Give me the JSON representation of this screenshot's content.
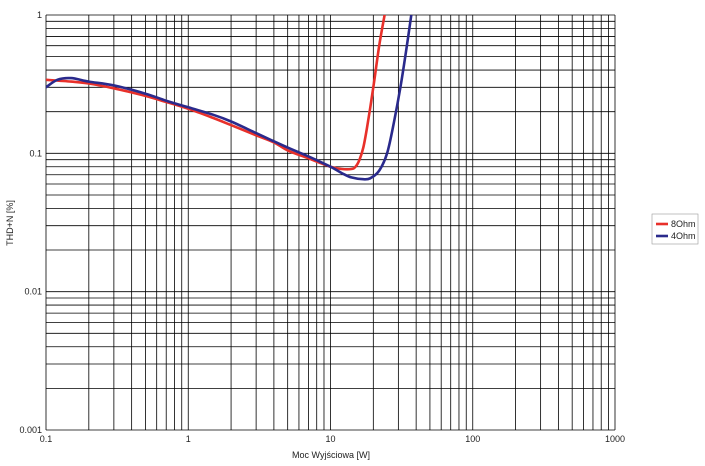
{
  "chart_data": {
    "type": "line",
    "title": "",
    "xlabel": "Moc Wyjściowa [W]",
    "ylabel": "THD+N [%]",
    "xscale": "log",
    "yscale": "log",
    "xlim": [
      0.1,
      1000
    ],
    "ylim": [
      0.001,
      1
    ],
    "grid": true,
    "legend_position": "right",
    "x_tick_labels": [
      "0.1",
      "1",
      "10",
      "100",
      "1000"
    ],
    "y_tick_labels": [
      "0.001",
      "0.01",
      "0.1",
      "1"
    ],
    "series": [
      {
        "name": "8Ohm",
        "color": "#e8302a",
        "x": [
          0.1,
          0.15,
          0.2,
          0.3,
          0.5,
          0.7,
          1.0,
          1.5,
          2.0,
          3.0,
          4.0,
          5.0,
          7.0,
          10.0,
          12.0,
          14.0,
          15.0,
          16.0,
          17.0,
          18.0,
          20.0,
          22.0,
          24.0
        ],
        "y": [
          0.34,
          0.33,
          0.32,
          0.295,
          0.26,
          0.235,
          0.21,
          0.18,
          0.16,
          0.135,
          0.12,
          0.105,
          0.092,
          0.08,
          0.077,
          0.077,
          0.08,
          0.09,
          0.11,
          0.15,
          0.3,
          0.6,
          1.0
        ]
      },
      {
        "name": "4Ohm",
        "color": "#2a2a8c",
        "x": [
          0.1,
          0.12,
          0.15,
          0.2,
          0.3,
          0.5,
          0.7,
          1.0,
          1.5,
          2.0,
          3.0,
          5.0,
          7.0,
          10.0,
          12.0,
          14.0,
          17.0,
          19.0,
          22.0,
          25.0,
          28.0,
          31.0,
          34.0,
          37.0
        ],
        "y": [
          0.3,
          0.34,
          0.35,
          0.33,
          0.31,
          0.27,
          0.24,
          0.215,
          0.19,
          0.17,
          0.14,
          0.11,
          0.095,
          0.08,
          0.072,
          0.067,
          0.065,
          0.066,
          0.075,
          0.1,
          0.17,
          0.3,
          0.55,
          1.0
        ]
      }
    ]
  }
}
